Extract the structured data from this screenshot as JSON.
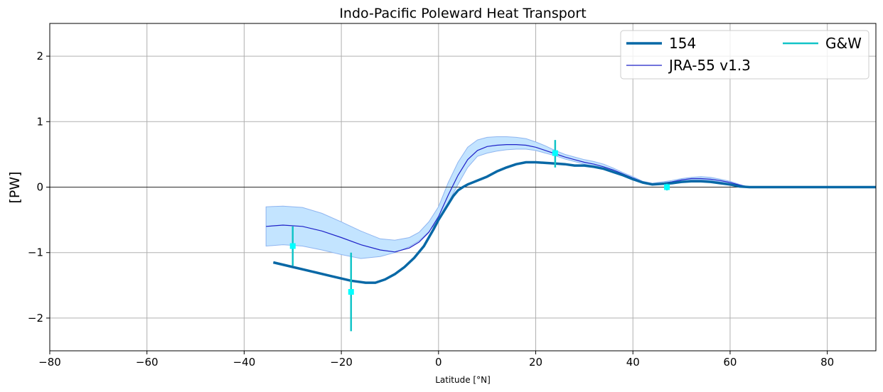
{
  "chart_data": {
    "type": "line",
    "title": "Indo-Pacific Poleward Heat Transport",
    "xlabel": "Latitude [°N]",
    "ylabel": "[PW]",
    "xlim": [
      -80,
      90
    ],
    "ylim": [
      -2.5,
      2.5
    ],
    "xticks": [
      -80,
      -60,
      -40,
      -20,
      0,
      20,
      40,
      60,
      80
    ],
    "yticks": [
      -2,
      -1,
      0,
      1,
      2
    ],
    "xtick_labels": [
      "−80",
      "−60",
      "−40",
      "−20",
      "0",
      "20",
      "40",
      "60",
      "80"
    ],
    "ytick_labels": [
      "−2",
      "−1",
      "0",
      "1",
      "2"
    ],
    "grid": true,
    "zero_line": true,
    "legend_position": "top-right",
    "series": [
      {
        "name": "154",
        "color": "#0868a6",
        "x": [
          -34,
          -30,
          -26,
          -22,
          -18,
          -15,
          -13,
          -11,
          -9,
          -7,
          -5,
          -3,
          -1,
          0,
          1,
          2,
          3,
          4,
          5,
          6,
          8,
          10,
          12,
          14,
          16,
          18,
          20,
          22,
          24,
          26,
          28,
          30,
          32,
          34,
          36,
          38,
          40,
          42,
          44,
          46,
          48,
          50,
          52,
          54,
          56,
          58,
          60,
          62,
          64,
          66,
          70,
          80,
          90
        ],
        "y": [
          -1.15,
          -1.22,
          -1.29,
          -1.36,
          -1.43,
          -1.46,
          -1.46,
          -1.41,
          -1.33,
          -1.22,
          -1.08,
          -0.9,
          -0.64,
          -0.5,
          -0.38,
          -0.26,
          -0.14,
          -0.05,
          0.0,
          0.04,
          0.1,
          0.16,
          0.24,
          0.3,
          0.35,
          0.38,
          0.38,
          0.37,
          0.36,
          0.35,
          0.33,
          0.33,
          0.31,
          0.28,
          0.23,
          0.18,
          0.12,
          0.07,
          0.04,
          0.05,
          0.06,
          0.08,
          0.09,
          0.09,
          0.08,
          0.06,
          0.04,
          0.01,
          0.0,
          0.0,
          0.0,
          0.0,
          0.0
        ]
      },
      {
        "name": "JRA-55 v1.3",
        "color": "#1f22c8",
        "x": [
          -35.5,
          -32,
          -28,
          -24,
          -20,
          -16,
          -12,
          -9,
          -6,
          -4,
          -2,
          0,
          2,
          4,
          6,
          8,
          10,
          12,
          14,
          16,
          18,
          20,
          22,
          24,
          26,
          28,
          30,
          32,
          34,
          36,
          38,
          40,
          42,
          44,
          46,
          48,
          50,
          52,
          54,
          56,
          58,
          60,
          62,
          64,
          66,
          70,
          80,
          90
        ],
        "y": [
          -0.6,
          -0.58,
          -0.6,
          -0.67,
          -0.77,
          -0.88,
          -0.96,
          -0.99,
          -0.93,
          -0.84,
          -0.69,
          -0.45,
          -0.12,
          0.18,
          0.42,
          0.56,
          0.62,
          0.64,
          0.65,
          0.65,
          0.64,
          0.61,
          0.56,
          0.51,
          0.46,
          0.42,
          0.38,
          0.35,
          0.31,
          0.26,
          0.2,
          0.14,
          0.08,
          0.05,
          0.06,
          0.08,
          0.11,
          0.13,
          0.13,
          0.12,
          0.1,
          0.07,
          0.03,
          0.0,
          0.0,
          0.0,
          0.0,
          0.0
        ],
        "band_lower": [
          -0.9,
          -0.88,
          -0.9,
          -0.96,
          -1.03,
          -1.09,
          -1.06,
          -1.0,
          -0.91,
          -0.82,
          -0.68,
          -0.5,
          -0.24,
          0.04,
          0.3,
          0.47,
          0.52,
          0.55,
          0.57,
          0.58,
          0.58,
          0.56,
          0.52,
          0.48,
          0.43,
          0.39,
          0.35,
          0.32,
          0.28,
          0.23,
          0.18,
          0.12,
          0.07,
          0.04,
          0.05,
          0.07,
          0.09,
          0.11,
          0.11,
          0.1,
          0.08,
          0.05,
          0.02,
          0.0,
          0.0,
          0.0,
          0.0,
          0.0
        ],
        "band_upper": [
          -0.3,
          -0.29,
          -0.31,
          -0.4,
          -0.53,
          -0.67,
          -0.79,
          -0.81,
          -0.77,
          -0.69,
          -0.53,
          -0.3,
          0.07,
          0.38,
          0.61,
          0.72,
          0.76,
          0.77,
          0.77,
          0.76,
          0.74,
          0.69,
          0.63,
          0.56,
          0.5,
          0.46,
          0.42,
          0.39,
          0.35,
          0.29,
          0.22,
          0.16,
          0.09,
          0.06,
          0.08,
          0.1,
          0.13,
          0.15,
          0.16,
          0.15,
          0.12,
          0.09,
          0.04,
          0.0,
          0.0,
          0.0,
          0.0,
          0.0
        ],
        "band_color": "#c3e4ff"
      }
    ],
    "observations": {
      "name": "G&W",
      "color": "#12c4c8",
      "marker_color": "#00ffff",
      "points": [
        {
          "x": -30,
          "y": -0.9,
          "ymin": -1.2,
          "ymax": -0.6
        },
        {
          "x": -18,
          "y": -1.6,
          "ymin": -2.2,
          "ymax": -1.0
        },
        {
          "x": 24,
          "y": 0.52,
          "ymin": 0.3,
          "ymax": 0.72
        },
        {
          "x": 47,
          "y": 0.0,
          "ymin": -0.05,
          "ymax": 0.05
        }
      ]
    }
  }
}
